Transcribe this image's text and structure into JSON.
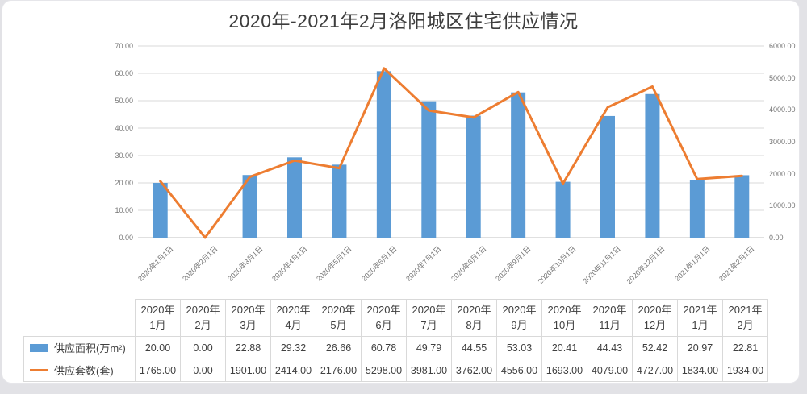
{
  "page": {
    "background": "#e2e2e6",
    "panel_background": "#ffffff"
  },
  "chart_data": {
    "type": "combo",
    "title": "2020年-2021年2月洛阳城区住宅供应情况",
    "categories": [
      "2020年1月",
      "2020年2月",
      "2020年3月",
      "2020年4月",
      "2020年5月",
      "2020年6月",
      "2020年7月",
      "2020年8月",
      "2020年9月",
      "2020年10月",
      "2020年11月",
      "2020年12月",
      "2021年1月",
      "2021年2月"
    ],
    "x_tick_labels": [
      "2020年1月1日",
      "2020年2月1日",
      "2020年3月1日",
      "2020年4月1日",
      "2020年5月1日",
      "2020年6月1日",
      "2020年7月1日",
      "2020年8月1日",
      "2020年9月1日",
      "2020年10月1日",
      "2020年11月1日",
      "2020年12月1日",
      "2021年1月1日",
      "2021年2月1日"
    ],
    "series": [
      {
        "name": "供应面积(万m²)",
        "chart_type": "bar",
        "axis": "left",
        "color": "#5B9BD5",
        "values": [
          20.0,
          0.0,
          22.88,
          29.32,
          26.66,
          60.78,
          49.79,
          44.55,
          53.03,
          20.41,
          44.43,
          52.42,
          20.97,
          22.81
        ]
      },
      {
        "name": "供应套数(套)",
        "chart_type": "line",
        "axis": "right",
        "color": "#ED7D31",
        "values": [
          1765.0,
          0.0,
          1901.0,
          2414.0,
          2176.0,
          5298.0,
          3981.0,
          3762.0,
          4556.0,
          1693.0,
          4079.0,
          4727.0,
          1834.0,
          1934.0
        ]
      }
    ],
    "left_axis": {
      "min": 0,
      "max": 70,
      "step": 10,
      "tick_labels": [
        "0.00",
        "10.00",
        "20.00",
        "30.00",
        "40.00",
        "50.00",
        "60.00",
        "70.00"
      ]
    },
    "right_axis": {
      "min": 0,
      "max": 6000,
      "step": 1000,
      "tick_labels": [
        "0.00",
        "1000.00",
        "2000.00",
        "3000.00",
        "4000.00",
        "5000.00",
        "6000.00"
      ]
    },
    "grid": true,
    "legend_position": "data-table",
    "value_decimals": 2
  },
  "colors": {
    "bar": "#5B9BD5",
    "line": "#ED7D31",
    "gridline": "#d9d9d9",
    "axis_baseline": "#c0c0c0",
    "axis_text": "#757575",
    "table_text": "#404040",
    "table_border": "#d9d9d9"
  }
}
